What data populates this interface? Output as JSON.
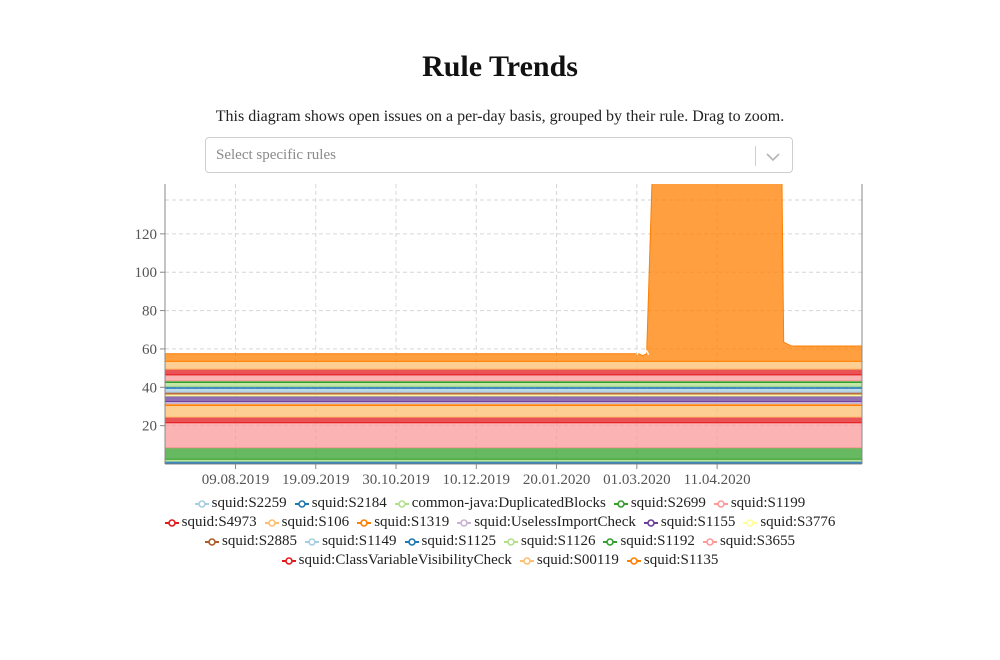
{
  "page": {
    "title": "Rule Trends",
    "description": "This diagram shows open issues on a per-day basis, grouped by their rule. Drag to zoom.",
    "select_placeholder": "Select specific rules"
  },
  "chart_data": {
    "type": "area",
    "stacked": true,
    "x_tick_labels": [
      "09.08.2019",
      "19.09.2019",
      "30.10.2019",
      "10.12.2019",
      "20.01.2020",
      "01.03.2020",
      "11.04.2020"
    ],
    "x_tick_days": [
      0,
      41,
      82,
      123,
      164,
      205,
      246
    ],
    "x_range_days": [
      -36,
      320
    ],
    "ylim": [
      0,
      146
    ],
    "y_ticks": [
      20,
      40,
      60,
      80,
      100,
      120
    ],
    "grid": true,
    "legend_position": "bottom",
    "series": [
      {
        "name": "squid:S2259",
        "color": "#a6cee3",
        "value": 0.5
      },
      {
        "name": "squid:S2184",
        "color": "#1f78b4",
        "value": 1
      },
      {
        "name": "common-java:DuplicatedBlocks",
        "color": "#b2df8a",
        "value": 1
      },
      {
        "name": "squid:S2699",
        "color": "#33a02c",
        "value": 6
      },
      {
        "name": "squid:S1199",
        "color": "#fb9a99",
        "value": 13
      },
      {
        "name": "squid:S4973",
        "color": "#e31a1c",
        "value": 3
      },
      {
        "name": "squid:S106",
        "color": "#fdbf6f",
        "value": 6
      },
      {
        "name": "squid:S1319",
        "color": "#ff7f00",
        "value": 1
      },
      {
        "name": "squid:UselessImportCheck",
        "color": "#cab2d6",
        "value": 1
      },
      {
        "name": "squid:S1155",
        "color": "#6a3d9a",
        "value": 3
      },
      {
        "name": "squid:S3776",
        "color": "#ffff99",
        "value": 1
      },
      {
        "name": "squid:S2885",
        "color": "#b15928",
        "value": 1
      },
      {
        "name": "squid:S1149",
        "color": "#a6cee3",
        "value": 2
      },
      {
        "name": "squid:S1125",
        "color": "#1f78b4",
        "value": 1
      },
      {
        "name": "squid:S1126",
        "color": "#b2df8a",
        "value": 2
      },
      {
        "name": "squid:S1192",
        "color": "#33a02c",
        "value": 1
      },
      {
        "name": "squid:S3655",
        "color": "#fb9a99",
        "value": 3
      },
      {
        "name": "squid:ClassVariableVisibilityCheck",
        "color": "#e31a1c",
        "value": 3
      },
      {
        "name": "squid:S00119",
        "color": "#fdbf6f",
        "value": 4
      },
      {
        "name": "squid:S1135",
        "color": "#ff7f00",
        "value": 4,
        "spike": {
          "x_days": [
            -36,
            206,
            208,
            210,
            216,
            278,
            280,
            284,
            320
          ],
          "values": [
            4,
            4,
            3,
            4,
            200,
            200,
            10,
            8,
            8
          ]
        }
      }
    ],
    "legend_rows": [
      [
        0,
        1,
        2,
        3,
        4
      ],
      [
        5,
        6,
        7,
        8,
        9,
        10
      ],
      [
        11,
        12,
        13,
        14,
        15,
        16
      ],
      [
        17,
        18,
        19
      ]
    ]
  }
}
